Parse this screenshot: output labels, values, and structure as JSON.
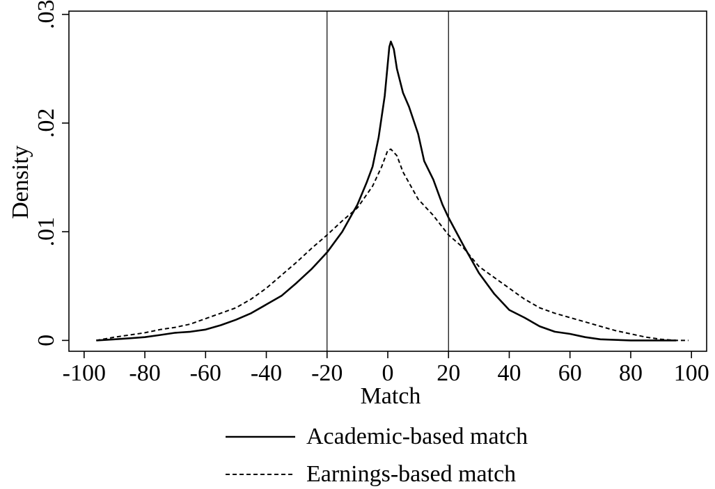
{
  "chart_data": {
    "type": "line",
    "xlabel": "Match",
    "ylabel": "Density",
    "xlim": [
      -105,
      105
    ],
    "ylim": [
      -0.001,
      0.0303
    ],
    "x_ticks": [
      -100,
      -80,
      -60,
      -40,
      -20,
      0,
      20,
      40,
      60,
      80,
      100
    ],
    "x_tick_labels": [
      "-100",
      "-80",
      "-60",
      "-40",
      "-20",
      "0",
      "20",
      "40",
      "60",
      "80",
      "100"
    ],
    "y_ticks": [
      0,
      0.01,
      0.02,
      0.03
    ],
    "y_tick_labels": [
      "0",
      ".01",
      ".02",
      ".03"
    ],
    "reference_lines_x": [
      -20,
      20
    ],
    "grid": false,
    "legend_position": "bottom",
    "series": [
      {
        "name": "Academic-based match",
        "style": "solid",
        "color": "#000000",
        "points": [
          [
            -96,
            0.0
          ],
          [
            -90,
            0.0001
          ],
          [
            -85,
            0.0002
          ],
          [
            -80,
            0.0003
          ],
          [
            -75,
            0.0005
          ],
          [
            -70,
            0.0007
          ],
          [
            -65,
            0.0008
          ],
          [
            -60,
            0.001
          ],
          [
            -55,
            0.0014
          ],
          [
            -50,
            0.0019
          ],
          [
            -45,
            0.0025
          ],
          [
            -40,
            0.0033
          ],
          [
            -35,
            0.0041
          ],
          [
            -30,
            0.0053
          ],
          [
            -25,
            0.0066
          ],
          [
            -20,
            0.0081
          ],
          [
            -15,
            0.01
          ],
          [
            -10,
            0.0125
          ],
          [
            -7,
            0.0145
          ],
          [
            -5,
            0.016
          ],
          [
            -3,
            0.0187
          ],
          [
            -1,
            0.0225
          ],
          [
            0,
            0.0255
          ],
          [
            0.5,
            0.027
          ],
          [
            1,
            0.0275
          ],
          [
            2,
            0.0268
          ],
          [
            3,
            0.025
          ],
          [
            5,
            0.0228
          ],
          [
            7,
            0.0215
          ],
          [
            10,
            0.019
          ],
          [
            12,
            0.0165
          ],
          [
            15,
            0.0148
          ],
          [
            18,
            0.0125
          ],
          [
            20,
            0.0113
          ],
          [
            25,
            0.0087
          ],
          [
            30,
            0.0062
          ],
          [
            35,
            0.0043
          ],
          [
            40,
            0.0028
          ],
          [
            45,
            0.0021
          ],
          [
            50,
            0.0013
          ],
          [
            55,
            0.0008
          ],
          [
            60,
            0.0006
          ],
          [
            65,
            0.0003
          ],
          [
            70,
            0.0001
          ],
          [
            80,
            0.0
          ],
          [
            95,
            0.0
          ]
        ]
      },
      {
        "name": "Earnings-based match",
        "style": "dashed",
        "color": "#000000",
        "points": [
          [
            -96,
            0.0
          ],
          [
            -90,
            0.0003
          ],
          [
            -85,
            0.0005
          ],
          [
            -80,
            0.0007
          ],
          [
            -75,
            0.001
          ],
          [
            -70,
            0.0012
          ],
          [
            -65,
            0.0015
          ],
          [
            -60,
            0.002
          ],
          [
            -55,
            0.0025
          ],
          [
            -50,
            0.003
          ],
          [
            -45,
            0.0038
          ],
          [
            -40,
            0.0048
          ],
          [
            -35,
            0.006
          ],
          [
            -30,
            0.0072
          ],
          [
            -25,
            0.0085
          ],
          [
            -20,
            0.0097
          ],
          [
            -15,
            0.011
          ],
          [
            -10,
            0.0122
          ],
          [
            -5,
            0.0142
          ],
          [
            -2,
            0.016
          ],
          [
            0,
            0.0175
          ],
          [
            1,
            0.0176
          ],
          [
            3,
            0.017
          ],
          [
            5,
            0.0155
          ],
          [
            8,
            0.014
          ],
          [
            10,
            0.013
          ],
          [
            15,
            0.0115
          ],
          [
            20,
            0.0097
          ],
          [
            25,
            0.0085
          ],
          [
            30,
            0.0068
          ],
          [
            35,
            0.0058
          ],
          [
            40,
            0.0048
          ],
          [
            45,
            0.0038
          ],
          [
            50,
            0.003
          ],
          [
            55,
            0.0025
          ],
          [
            60,
            0.0021
          ],
          [
            65,
            0.0017
          ],
          [
            70,
            0.0013
          ],
          [
            75,
            0.0009
          ],
          [
            80,
            0.0006
          ],
          [
            85,
            0.0003
          ],
          [
            90,
            0.0001
          ],
          [
            95,
            0.0
          ],
          [
            99,
            0.0
          ]
        ]
      }
    ]
  }
}
